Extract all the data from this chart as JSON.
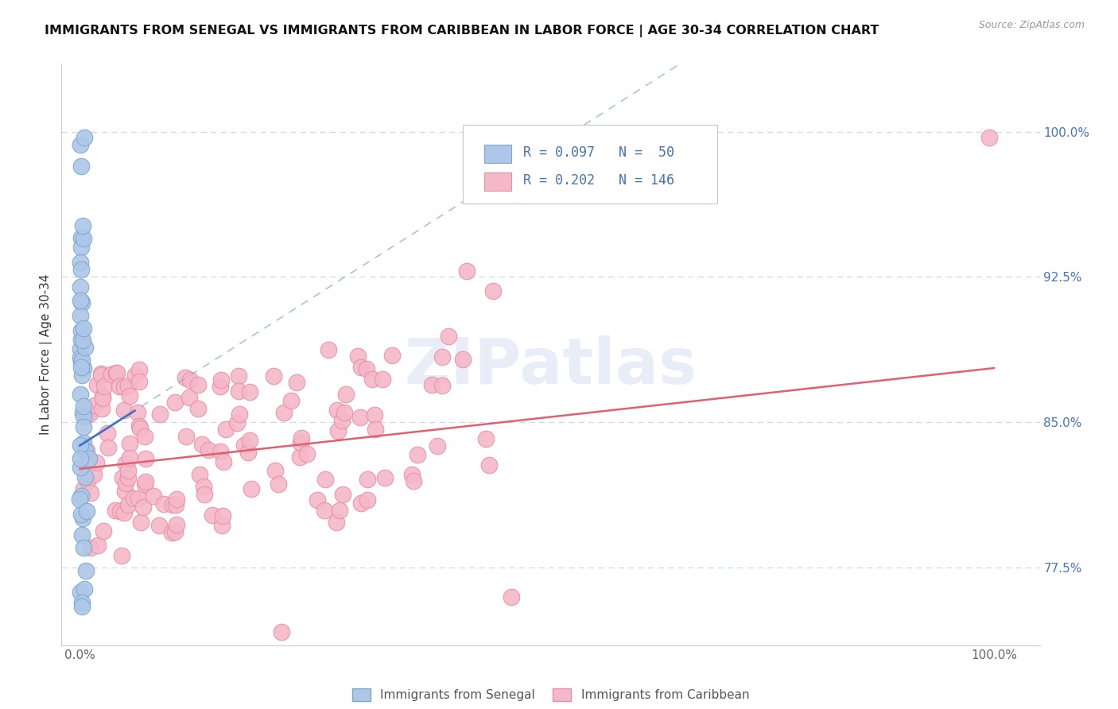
{
  "title": "IMMIGRANTS FROM SENEGAL VS IMMIGRANTS FROM CARIBBEAN IN LABOR FORCE | AGE 30-34 CORRELATION CHART",
  "source": "Source: ZipAtlas.com",
  "ylabel": "In Labor Force | Age 30-34",
  "legend_label1": "Immigrants from Senegal",
  "legend_label2": "Immigrants from Caribbean",
  "R1": 0.097,
  "N1": 50,
  "R2": 0.202,
  "N2": 146,
  "color_senegal_fill": "#aec6e8",
  "color_senegal_edge": "#7aaad0",
  "color_caribbean_fill": "#f5b8c8",
  "color_caribbean_edge": "#e890a8",
  "color_senegal_line": "#4472c4",
  "color_caribbean_line": "#e06070",
  "color_axis_text": "#4472c4",
  "color_title": "#111111",
  "color_source": "#999999",
  "ytick_labels": [
    "77.5%",
    "85.0%",
    "92.5%",
    "100.0%"
  ],
  "ytick_values": [
    0.775,
    0.85,
    0.925,
    1.0
  ],
  "xlim": [
    -0.02,
    1.05
  ],
  "ylim": [
    0.735,
    1.035
  ],
  "background_color": "#ffffff",
  "watermark": "ZIPatlas",
  "grid_color": "#d0d8e8",
  "spine_color": "#cccccc",
  "sen_reg_intercept": 0.838,
  "sen_reg_slope": 0.3,
  "car_reg_intercept": 0.826,
  "car_reg_slope": 0.052
}
